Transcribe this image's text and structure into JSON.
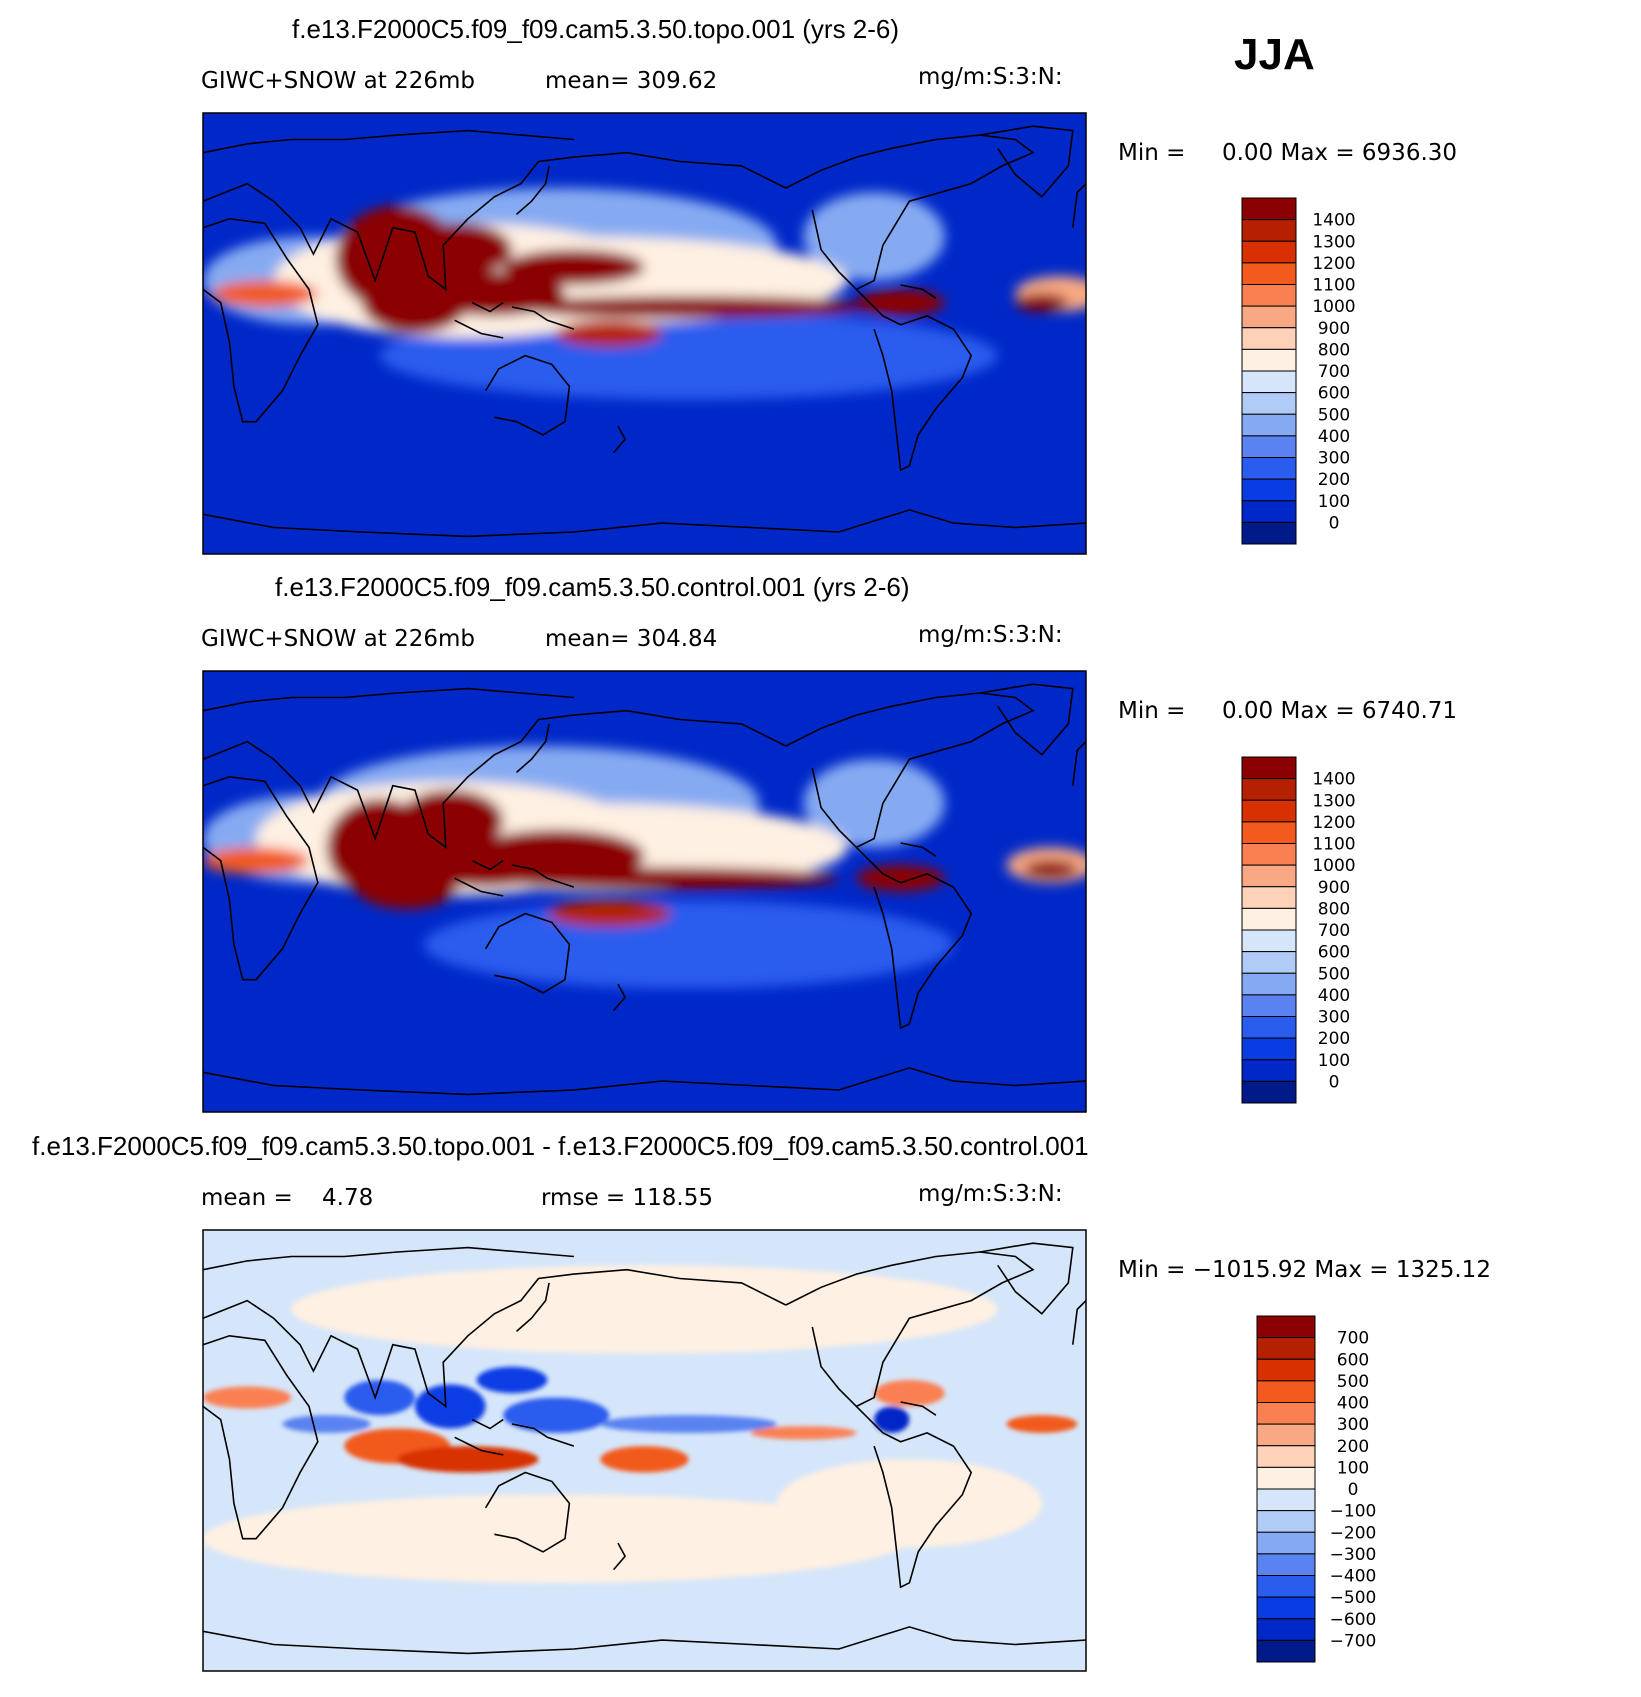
{
  "season": "JJA",
  "panels": [
    {
      "title": "f.e13.F2000C5.f09_f09.cam5.3.50.topo.001 (yrs 2-6)",
      "left_label": "GIWC+SNOW at 226mb",
      "mid_label": "mean= 309.62",
      "units": "mg/m:S:3:N:",
      "minmax": "Min =     0.00 Max = 6936.30"
    },
    {
      "title": "f.e13.F2000C5.f09_f09.cam5.3.50.control.001 (yrs 2-6)",
      "left_label": "GIWC+SNOW at 226mb",
      "mid_label": "mean= 304.84",
      "units": "mg/m:S:3:N:",
      "minmax": "Min =     0.00 Max = 6740.71"
    },
    {
      "title": "f.e13.F2000C5.f09_f09.cam5.3.50.topo.001 - f.e13.F2000C5.f09_f09.cam5.3.50.control.001",
      "left_label": "mean =    4.78",
      "mid_label": "rmse = 118.55",
      "units": "mg/m:S:3:N:",
      "minmax": "Min = −1015.92 Max = 1325.12"
    }
  ],
  "chart_data": [
    {
      "type": "heatmap",
      "title": "f.e13.F2000C5.f09_f09.cam5.3.50.topo.001 (yrs 2-6)",
      "variable": "GIWC+SNOW at 226mb",
      "mean": 309.62,
      "min": 0.0,
      "max": 6936.3,
      "colorbar_levels": [
        "1400",
        "1300",
        "1200",
        "1100",
        "1000",
        "900",
        "800",
        "700",
        "600",
        "500",
        "400",
        "300",
        "200",
        "100",
        "0"
      ],
      "colors": [
        "#8b0000",
        "#b52000",
        "#d83000",
        "#f25a1e",
        "#fa8052",
        "#f8a882",
        "#fdd2b8",
        "#fef0e2",
        "#d6e6fa",
        "#b0ccf6",
        "#86aaf2",
        "#5a82f0",
        "#2a5cee",
        "#0a3ce4",
        "#0028c8",
        "#001a8a"
      ]
    },
    {
      "type": "heatmap",
      "title": "f.e13.F2000C5.f09_f09.cam5.3.50.control.001 (yrs 2-6)",
      "variable": "GIWC+SNOW at 226mb",
      "mean": 304.84,
      "min": 0.0,
      "max": 6740.71,
      "colorbar_levels": [
        "1400",
        "1300",
        "1200",
        "1100",
        "1000",
        "900",
        "800",
        "700",
        "600",
        "500",
        "400",
        "300",
        "200",
        "100",
        "0"
      ],
      "colors": [
        "#8b0000",
        "#b52000",
        "#d83000",
        "#f25a1e",
        "#fa8052",
        "#f8a882",
        "#fdd2b8",
        "#fef0e2",
        "#d6e6fa",
        "#b0ccf6",
        "#86aaf2",
        "#5a82f0",
        "#2a5cee",
        "#0a3ce4",
        "#0028c8",
        "#001a8a"
      ]
    },
    {
      "type": "heatmap",
      "title": "f.e13.F2000C5.f09_f09.cam5.3.50.topo.001 - f.e13.F2000C5.f09_f09.cam5.3.50.control.001",
      "mean": 4.78,
      "rmse": 118.55,
      "min": -1015.92,
      "max": 1325.12,
      "colorbar_levels": [
        "700",
        "600",
        "500",
        "400",
        "300",
        "200",
        "100",
        "0",
        "−100",
        "−200",
        "−300",
        "−400",
        "−500",
        "−600",
        "−700"
      ],
      "colors": [
        "#8b0000",
        "#b52000",
        "#d83000",
        "#f25a1e",
        "#fa8052",
        "#f8a882",
        "#fdd2b8",
        "#fef0e2",
        "#d6e6fa",
        "#b0ccf6",
        "#86aaf2",
        "#5a82f0",
        "#2a5cee",
        "#0a3ce4",
        "#0028c8",
        "#001a8a"
      ]
    }
  ]
}
